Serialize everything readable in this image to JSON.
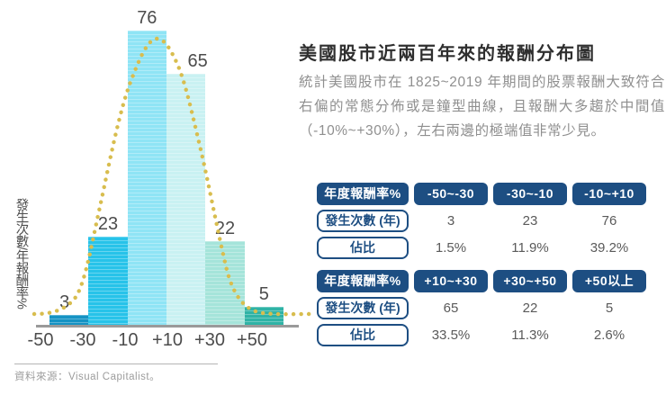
{
  "article": {
    "title": "美國股市近兩百年來的報酬分布圖",
    "body": "統計美國股市在 1825~2019 年期間的股票報酬大致符合右偏的常態分佈或是鐘型曲線，且報酬大多趨於中間值（-10%~+30%），左右兩邊的極端值非常少見。"
  },
  "chart_data": {
    "type": "bar",
    "title": "美國股市近兩百年來的報酬分布圖",
    "categories": [
      "-50~-30",
      "-30~-10",
      "-10~+10",
      "+10~+30",
      "+30~+50",
      "+50以上"
    ],
    "values": [
      3,
      23,
      76,
      65,
      22,
      5
    ],
    "percentages": [
      "1.5%",
      "11.9%",
      "39.2%",
      "33.5%",
      "11.3%",
      "2.6%"
    ],
    "x_tick_labels": [
      "-50",
      "-30",
      "-10",
      "+10",
      "+30",
      "+50"
    ],
    "xlabel": "",
    "ylabel": "發生次數/年報酬率%",
    "ylim": [
      0,
      80
    ],
    "grid": false,
    "legend": "none",
    "overlay_curve": "right-skewed normal (bell) curve, dotted",
    "bar_colors": [
      "#1593c4",
      "#27c3e9",
      "#8fe4f5",
      "#c9f1f2",
      "#a5e4da",
      "#2fb3a6"
    ],
    "curve_color": "#d8bd4e"
  },
  "tables": [
    {
      "header": [
        "年度報酬率%",
        "-50~-30",
        "-30~-10",
        "-10~+10"
      ],
      "rows": [
        {
          "label": "發生次數 (年)",
          "values": [
            "3",
            "23",
            "76"
          ]
        },
        {
          "label": "佔比",
          "values": [
            "1.5%",
            "11.9%",
            "39.2%"
          ]
        }
      ]
    },
    {
      "header": [
        "年度報酬率%",
        "+10~+30",
        "+30~+50",
        "+50以上"
      ],
      "rows": [
        {
          "label": "發生次數 (年)",
          "values": [
            "65",
            "22",
            "5"
          ]
        },
        {
          "label": "佔比",
          "values": [
            "33.5%",
            "11.3%",
            "2.6%"
          ]
        }
      ]
    }
  ],
  "footer": {
    "source_note": "資料來源：Visual Capitalist。"
  },
  "colors": {
    "table_navy": "#1d4e82",
    "title_text": "#2f2f2f",
    "body_text": "#8f8f8f",
    "value_label_text": "#4c4c4c",
    "axis_line": "#9a9a9a",
    "curve_gold": "#d8bd4e"
  }
}
